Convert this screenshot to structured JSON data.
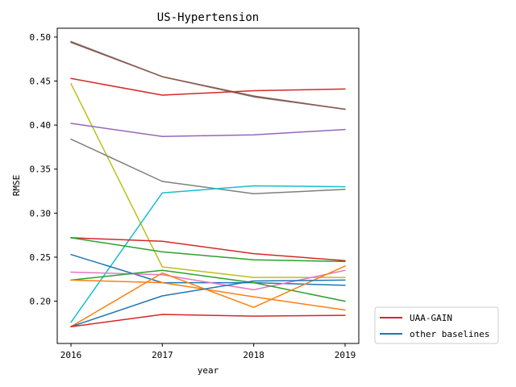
{
  "chart_data": {
    "type": "line",
    "title": "US-Hypertension",
    "xlabel": "year",
    "ylabel": "RMSE",
    "x": [
      2016,
      2017,
      2018,
      2019
    ],
    "x_tick_labels": [
      "2016",
      "2017",
      "2018",
      "2019"
    ],
    "xlim": [
      2015.85,
      2019.15
    ],
    "ylim": [
      0.152,
      0.51
    ],
    "y_ticks": [
      0.2,
      0.25,
      0.3,
      0.35,
      0.4,
      0.45,
      0.5
    ],
    "y_tick_labels": [
      "0.20",
      "0.25",
      "0.30",
      "0.35",
      "0.40",
      "0.45",
      "0.50"
    ],
    "grid": false,
    "legend_position": "outside-bottom-right",
    "legend": [
      {
        "label": "UAA-GAIN",
        "color": "#d62728"
      },
      {
        "label": "other baselines",
        "color": "#1f77b4"
      }
    ],
    "series": [
      {
        "color": "#7f7f7f",
        "values": [
          0.495,
          0.455,
          0.432,
          0.418
        ]
      },
      {
        "color": "#8c564b",
        "values": [
          0.494,
          0.455,
          0.433,
          0.418
        ]
      },
      {
        "color": "#d62728",
        "values": [
          0.453,
          0.434,
          0.439,
          0.441
        ]
      },
      {
        "color": "#bcbd22",
        "values": [
          0.447,
          0.239,
          0.227,
          0.227
        ]
      },
      {
        "color": "#9467bd",
        "values": [
          0.402,
          0.387,
          0.389,
          0.395
        ]
      },
      {
        "color": "#7f7f7f",
        "values": [
          0.384,
          0.336,
          0.322,
          0.327
        ]
      },
      {
        "color": "#17becf",
        "values": [
          0.176,
          0.323,
          0.331,
          0.33
        ]
      },
      {
        "color": "#d62728",
        "values": [
          0.272,
          0.268,
          0.254,
          0.246
        ]
      },
      {
        "color": "#2ca02c",
        "values": [
          0.272,
          0.256,
          0.247,
          0.245
        ]
      },
      {
        "color": "#1f77b4",
        "values": [
          0.253,
          0.221,
          0.221,
          0.218
        ]
      },
      {
        "color": "#e377c2",
        "values": [
          0.233,
          0.23,
          0.213,
          0.235
        ]
      },
      {
        "color": "#2ca02c",
        "values": [
          0.224,
          0.235,
          0.221,
          0.2
        ]
      },
      {
        "color": "#ff7f0e",
        "values": [
          0.224,
          0.221,
          0.205,
          0.19
        ]
      },
      {
        "color": "#ff7f0e",
        "values": [
          0.171,
          0.232,
          0.193,
          0.24
        ]
      },
      {
        "color": "#1f77b4",
        "values": [
          0.171,
          0.206,
          0.223,
          0.224
        ]
      },
      {
        "color": "#d62728",
        "values": [
          0.171,
          0.185,
          0.183,
          0.184
        ]
      }
    ]
  }
}
